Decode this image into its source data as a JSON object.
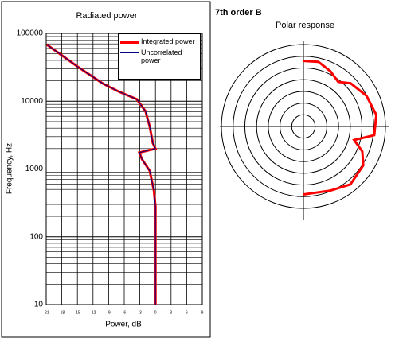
{
  "chart_data": [
    {
      "type": "line",
      "title": "Radiated power",
      "xlabel": "Power, dB",
      "ylabel": "Frequency, Hz",
      "yscale": "log",
      "grid": true,
      "minor_grid": true,
      "legend": "upper right",
      "xlim": [
        -21,
        9
      ],
      "xticks": [
        -21,
        -18,
        -15,
        -12,
        -9,
        -6,
        -3,
        0,
        3,
        6,
        9
      ],
      "ylim": [
        10,
        100000
      ],
      "yticks": [
        10,
        100,
        1000,
        10000,
        100000
      ],
      "series": [
        {
          "name": "Integrated power",
          "color": "#ff0000",
          "x": [
            -20.9,
            -14.7,
            -10.1,
            -7,
            -3.6,
            -1.9,
            -1.1,
            -0.5,
            0,
            -3.1,
            -2.6,
            -1.1,
            -0.3,
            0,
            0
          ],
          "values": [
            68500,
            31300,
            18200,
            13800,
            10700,
            7100,
            4200,
            2400,
            2000,
            1750,
            1400,
            940,
            480,
            280,
            10
          ]
        },
        {
          "name": "Uncorrelated power",
          "color": "#000080",
          "x": [
            -20.9,
            -14.7,
            -10.1,
            -7,
            -3.6,
            -1.9,
            -1.1,
            -0.5,
            0,
            -3.1,
            -2.6,
            -1.1,
            -0.3,
            0,
            0
          ],
          "values": [
            68500,
            31300,
            18200,
            13800,
            10700,
            7100,
            4200,
            2400,
            2000,
            1750,
            1400,
            940,
            480,
            280,
            10
          ]
        }
      ]
    },
    {
      "type": "polar",
      "title": "7th order B",
      "subtitle": "Polar response",
      "color": "#ff0000",
      "rlim": [
        0,
        1
      ],
      "theta": [
        0,
        13,
        26,
        38,
        47.5,
        64,
        81,
        97,
        105,
        113,
        123,
        141,
        157,
        180
      ],
      "values": [
        0.8,
        0.81,
        0.75,
        0.69,
        0.78,
        0.855,
        0.9,
        0.87,
        0.64,
        0.78,
        0.87,
        0.91,
        0.85,
        0.83
      ]
    }
  ]
}
